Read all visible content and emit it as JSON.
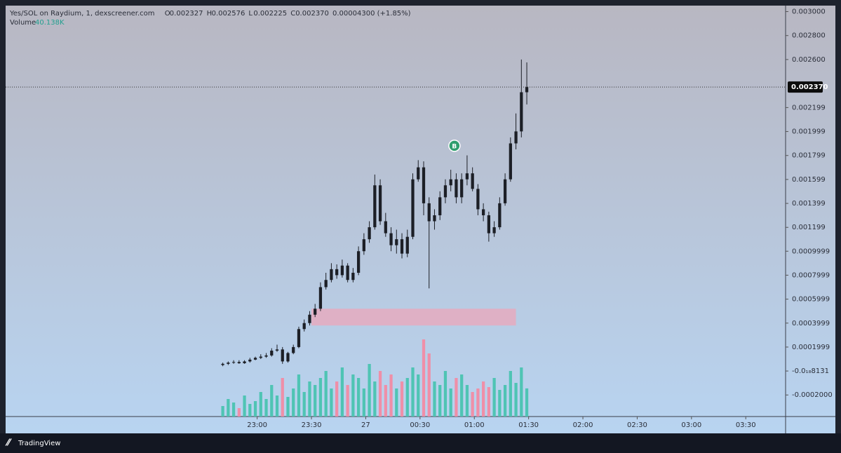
{
  "chart_data": {
    "type": "candlestick",
    "title": "Yes/SOL on Raydium, 1, dexscreener.com",
    "legend": [
      {
        "key": "O",
        "label": "0.002327"
      },
      {
        "key": "H",
        "label": "0.002576"
      },
      {
        "key": "L",
        "label": "0.002225"
      },
      {
        "key": "C",
        "label": "0.002370"
      }
    ],
    "change_label": "0.00004300 (+1.85%)",
    "volume_title": "Volume",
    "volume_value_label": "40.138K",
    "x": [
      1361,
      1364,
      1367,
      1370,
      1373,
      1376,
      1379,
      1382,
      1385,
      1388,
      1391,
      1394,
      1397,
      1400,
      1403,
      1406,
      1409,
      1412,
      1415,
      1418,
      1421,
      1424,
      1427,
      1430,
      1433,
      1436,
      1439,
      1442,
      1445,
      1448,
      1451,
      1454,
      1457,
      1460,
      1463,
      1466,
      1469,
      1472,
      1475,
      1478,
      1481,
      1484,
      1487,
      1490,
      1493,
      1496,
      1499,
      1502,
      1505,
      1508,
      1511,
      1514,
      1517,
      1520,
      1523,
      1526,
      1529
    ],
    "open": [
      5e-05,
      6e-05,
      7e-05,
      7.5e-05,
      6.5e-05,
      8e-05,
      9.5e-05,
      0.00011,
      0.00012,
      0.00013,
      0.00017,
      0.00018,
      8e-05,
      0.00015,
      0.0002,
      0.00035,
      0.0004,
      0.00047,
      0.00052,
      0.0007,
      0.00076,
      0.00085,
      0.0008,
      0.00088,
      0.00076,
      0.00082,
      0.001,
      0.0011,
      0.0012,
      0.00155,
      0.00125,
      0.00115,
      0.00105,
      0.0011,
      0.00098,
      0.00112,
      0.0016,
      0.0017,
      0.0014,
      0.00125,
      0.0013,
      0.00145,
      0.00155,
      0.0016,
      0.00145,
      0.0016,
      0.00165,
      0.00152,
      0.00135,
      0.0013,
      0.00115,
      0.0012,
      0.0014,
      0.0016,
      0.0019,
      0.002,
      0.002327
    ],
    "high": [
      7e-05,
      8e-05,
      9e-05,
      9e-05,
      9e-05,
      0.00011,
      0.00012,
      0.00014,
      0.00015,
      0.00019,
      0.00022,
      0.0002,
      0.00016,
      0.00022,
      0.00037,
      0.00043,
      0.0005,
      0.00056,
      0.00074,
      0.00082,
      0.0009,
      0.00089,
      0.00093,
      0.0009,
      0.00086,
      0.00104,
      0.00115,
      0.00125,
      0.00164,
      0.0016,
      0.00132,
      0.0012,
      0.00118,
      0.00115,
      0.00118,
      0.00165,
      0.00176,
      0.00175,
      0.00145,
      0.00135,
      0.0015,
      0.0016,
      0.00168,
      0.00165,
      0.00165,
      0.0018,
      0.0017,
      0.00156,
      0.0014,
      0.00133,
      0.00125,
      0.00145,
      0.00165,
      0.00195,
      0.00215,
      0.0026,
      0.002576
    ],
    "low": [
      4e-05,
      5e-05,
      6e-05,
      6e-05,
      6e-05,
      7e-05,
      9e-05,
      0.0001,
      0.00011,
      0.00012,
      0.00016,
      6e-05,
      7e-05,
      0.00014,
      0.00019,
      0.00033,
      0.00038,
      0.00045,
      0.0005,
      0.00068,
      0.00074,
      0.00077,
      0.00078,
      0.00074,
      0.00074,
      0.0008,
      0.00097,
      0.00107,
      0.00118,
      0.00122,
      0.00112,
      0.001,
      0.00098,
      0.00094,
      0.00095,
      0.0011,
      0.00158,
      0.0013,
      0.00069,
      0.00118,
      0.00126,
      0.0014,
      0.0015,
      0.0014,
      0.0014,
      0.00155,
      0.0015,
      0.0013,
      0.00125,
      0.00108,
      0.00112,
      0.00118,
      0.00138,
      0.00158,
      0.00185,
      0.00195,
      0.002225
    ],
    "close": [
      6e-05,
      7e-05,
      7.5e-05,
      6.5e-05,
      8e-05,
      9.5e-05,
      0.00011,
      0.00012,
      0.00013,
      0.00017,
      0.00018,
      8e-05,
      0.00015,
      0.0002,
      0.00035,
      0.0004,
      0.00047,
      0.00052,
      0.0007,
      0.00076,
      0.00085,
      0.0008,
      0.00088,
      0.00076,
      0.00082,
      0.001,
      0.0011,
      0.0012,
      0.00155,
      0.00125,
      0.00115,
      0.00105,
      0.0011,
      0.00098,
      0.00112,
      0.0016,
      0.0017,
      0.0014,
      0.00125,
      0.0013,
      0.00145,
      0.00155,
      0.0016,
      0.00145,
      0.0016,
      0.00165,
      0.00152,
      0.00135,
      0.0013,
      0.00115,
      0.0012,
      0.0014,
      0.0016,
      0.0019,
      0.002,
      0.002327,
      0.00237
    ],
    "volume": [
      15000,
      25000,
      20000,
      12000,
      30000,
      18000,
      22000,
      35000,
      25000,
      45000,
      30000,
      55000,
      28000,
      40000,
      60000,
      35000,
      50000,
      45000,
      55000,
      65000,
      40000,
      50000,
      70000,
      45000,
      60000,
      55000,
      40000,
      75000,
      50000,
      65000,
      45000,
      60000,
      40000,
      50000,
      55000,
      70000,
      60000,
      110000,
      90000,
      50000,
      45000,
      65000,
      40000,
      55000,
      60000,
      45000,
      35000,
      40000,
      50000,
      42000,
      55000,
      38000,
      45000,
      65000,
      48000,
      70000,
      40138
    ],
    "volume_lim": [
      0,
      586000
    ],
    "candle_color": "#1c1f26",
    "up_color": "#4fc4b4",
    "down_color": "#ef8fa8",
    "xlim": [
      1241,
      1672
    ],
    "ylim": [
      -0.00038,
      0.00305
    ],
    "xticks": [
      {
        "value": 1380,
        "label": "23:00"
      },
      {
        "value": 1410,
        "label": "23:30"
      },
      {
        "value": 1440,
        "label": "27"
      },
      {
        "value": 1470,
        "label": "00:30"
      },
      {
        "value": 1500,
        "label": "01:00"
      },
      {
        "value": 1530,
        "label": "01:30"
      },
      {
        "value": 1560,
        "label": "02:00"
      },
      {
        "value": 1590,
        "label": "02:30"
      },
      {
        "value": 1620,
        "label": "03:00"
      },
      {
        "value": 1650,
        "label": "03:30"
      }
    ],
    "yticks": [
      {
        "value": 0.003,
        "label": "0.003000"
      },
      {
        "value": 0.0028,
        "label": "0.002800"
      },
      {
        "value": 0.0026,
        "label": "0.002600"
      },
      0.002199,
      0.001999,
      0.001799,
      0.001599,
      0.001399,
      0.001199,
      0.0009999,
      0.0007999,
      0.0005999,
      0.0003999,
      0.0001999,
      {
        "value": -8.131e-19,
        "label": "-0.0₁₈8131"
      },
      {
        "value": -0.0002,
        "label": "-0.0002000"
      }
    ],
    "last_price": {
      "value": 0.00237,
      "label": "0.002370"
    },
    "zones": [
      {
        "x": [
          1410,
          1523
        ],
        "y": [
          0.00038,
          0.00052
        ],
        "color": "#e9a9bd"
      }
    ],
    "markers": [
      {
        "x": 1489,
        "y": 0.00188,
        "label": "B",
        "color": "#2f9e6e"
      }
    ],
    "brand": "TradingView"
  }
}
